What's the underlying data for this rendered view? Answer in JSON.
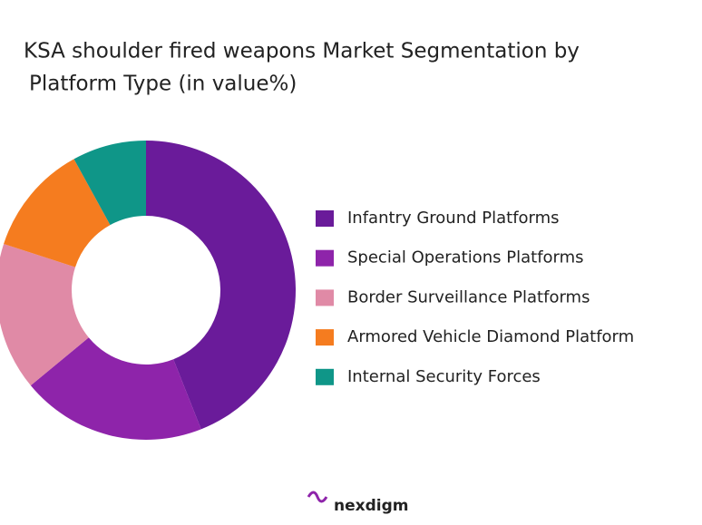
{
  "chart_data": {
    "type": "donut",
    "title": [
      "KSA shoulder fired weapons Market Segmentation by",
      "Platform Type (in value%)"
    ],
    "categories": [
      "Infantry Ground Platforms",
      "Special Operations Platforms",
      "Border Surveillance Platforms",
      "Armored Vehicle Diamond Platform",
      "Internal Security Forces"
    ],
    "values": [
      44,
      20,
      16,
      12,
      8
    ],
    "colors": [
      "#6a1b9a",
      "#8e24aa",
      "#e08aa6",
      "#f57c1f",
      "#0f9688"
    ],
    "legend": "right",
    "brand": "nexdigm"
  }
}
